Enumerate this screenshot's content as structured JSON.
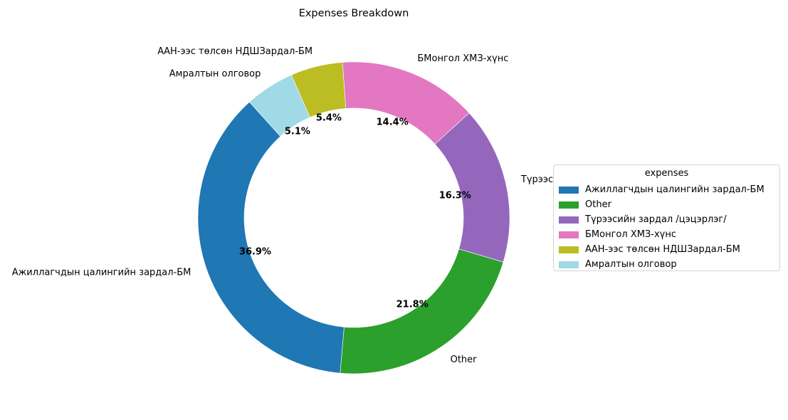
{
  "chart_data": {
    "type": "pie",
    "donut": true,
    "title": "Expenses Breakdown",
    "start_angle_deg": 132,
    "direction": "counterclockwise",
    "slices": [
      {
        "label": "Ажиллагчдын цалингийн зардал-БМ",
        "value": 36.9,
        "pct_label": "36.9%",
        "color": "#1f77b4"
      },
      {
        "label": "Other",
        "value": 21.8,
        "pct_label": "21.8%",
        "color": "#2ca02c"
      },
      {
        "label": "Түрээсийн зардал /цэцэрлэг/",
        "value": 16.3,
        "pct_label": "16.3%",
        "color": "#9467bd"
      },
      {
        "label": "БМонгол ХМЗ-хүнс",
        "value": 14.4,
        "pct_label": "14.4%",
        "color": "#e377c2"
      },
      {
        "label": "ААН-ээс төлсөн НДШЗардал-БМ",
        "value": 5.4,
        "pct_label": "5.4%",
        "color": "#bcbd22"
      },
      {
        "label": "Амралтын олговор",
        "value": 5.1,
        "pct_label": "5.1%",
        "color": "#a0dae6"
      }
    ],
    "legend": {
      "title": "expenses",
      "placement": "right"
    }
  }
}
